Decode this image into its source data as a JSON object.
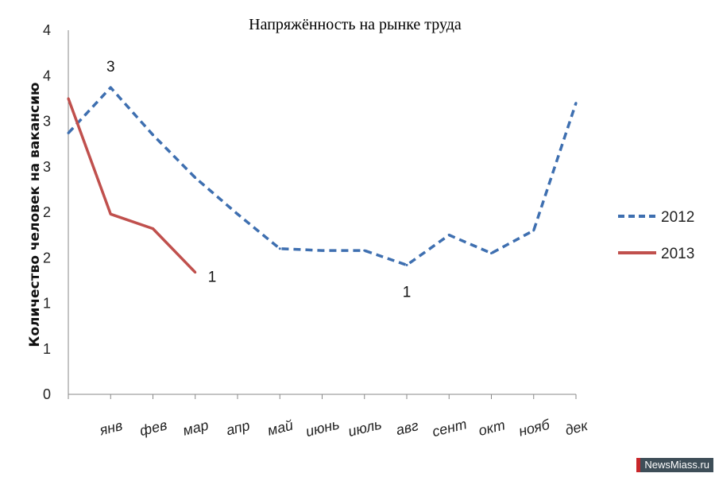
{
  "chart_data": {
    "type": "line",
    "title": "Напряжённость на рынке труда",
    "ylabel": "Количество человек на вакансию",
    "xlabel": "",
    "y_ticks": [
      {
        "value": 0,
        "label": "0"
      },
      {
        "value": 0.5,
        "label": "1"
      },
      {
        "value": 1.0,
        "label": "1"
      },
      {
        "value": 1.5,
        "label": "2"
      },
      {
        "value": 2.0,
        "label": "2"
      },
      {
        "value": 2.5,
        "label": "3"
      },
      {
        "value": 3.0,
        "label": "3"
      },
      {
        "value": 3.5,
        "label": "4"
      },
      {
        "value": 4.0,
        "label": "4"
      }
    ],
    "ylim": [
      0,
      4
    ],
    "categories": [
      "",
      "янв",
      "фев",
      "мар",
      "апр",
      "май",
      "июнь",
      "июль",
      "авг",
      "сент",
      "окт",
      "нояб",
      "дек"
    ],
    "series": [
      {
        "name": "2012",
        "color": "#3e6fb0",
        "style": "dashed",
        "values": [
          2.87,
          3.37,
          2.85,
          2.38,
          1.98,
          1.6,
          1.58,
          1.58,
          1.42,
          1.75,
          1.55,
          1.8,
          3.2
        ]
      },
      {
        "name": "2013",
        "color": "#c0504d",
        "style": "solid",
        "values": [
          3.25,
          1.98,
          1.82,
          1.34,
          null,
          null,
          null,
          null,
          null,
          null,
          null,
          null,
          null
        ]
      }
    ],
    "annotations": [
      {
        "series": 0,
        "index": 1,
        "text": "3",
        "position": "above"
      },
      {
        "series": 1,
        "index": 3,
        "text": "1",
        "position": "right"
      },
      {
        "series": 0,
        "index": 8,
        "text": "1",
        "position": "below"
      }
    ],
    "legend_position": "right",
    "grid": false
  },
  "watermark": {
    "text": "NewsMiass.ru"
  }
}
